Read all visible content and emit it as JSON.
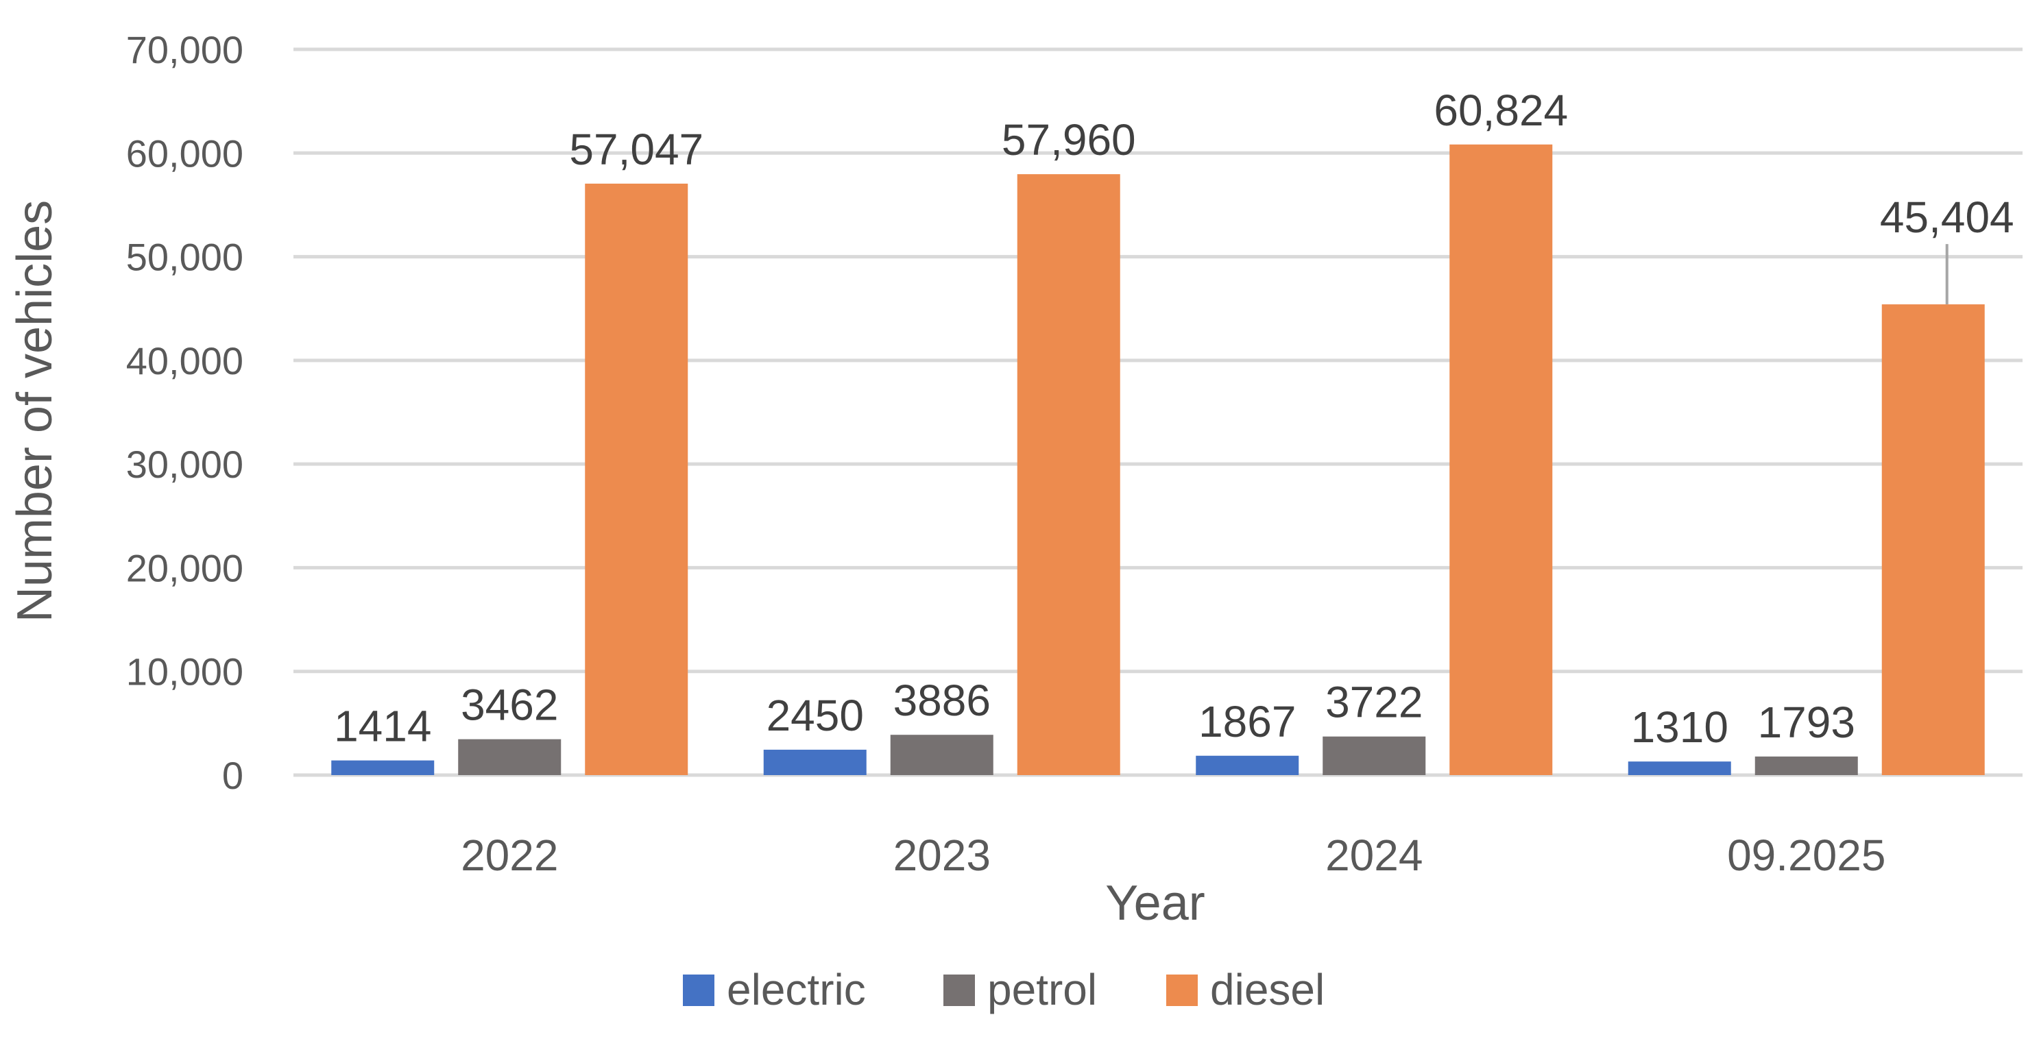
{
  "chart_data": {
    "type": "bar",
    "title": "",
    "xlabel": "Year",
    "ylabel": "Number of vehicles",
    "categories": [
      "2022",
      "2023",
      "2024",
      "09.2025"
    ],
    "series": [
      {
        "name": "electric",
        "color": "#4472c4",
        "values": [
          1414,
          2450,
          1867,
          1310
        ],
        "labels": [
          "1414",
          "2450",
          "1867",
          "1310"
        ]
      },
      {
        "name": "petrol",
        "color": "#767171",
        "values": [
          3462,
          3886,
          3722,
          1793
        ],
        "labels": [
          "3462",
          "3886",
          "3722",
          "1793"
        ]
      },
      {
        "name": "diesel",
        "color": "#ed8b4e",
        "values": [
          57047,
          57960,
          60824,
          45404
        ],
        "labels": [
          "57,047",
          "57,960",
          "60,824",
          "45,404"
        ]
      }
    ],
    "ylim": [
      0,
      70000
    ],
    "yticks": [
      0,
      10000,
      20000,
      30000,
      40000,
      50000,
      60000,
      70000
    ],
    "ytick_labels": [
      "0",
      "10,000",
      "20,000",
      "30,000",
      "40,000",
      "50,000",
      "60,000",
      "70,000"
    ],
    "grid": true,
    "legend_position": "bottom-center"
  }
}
